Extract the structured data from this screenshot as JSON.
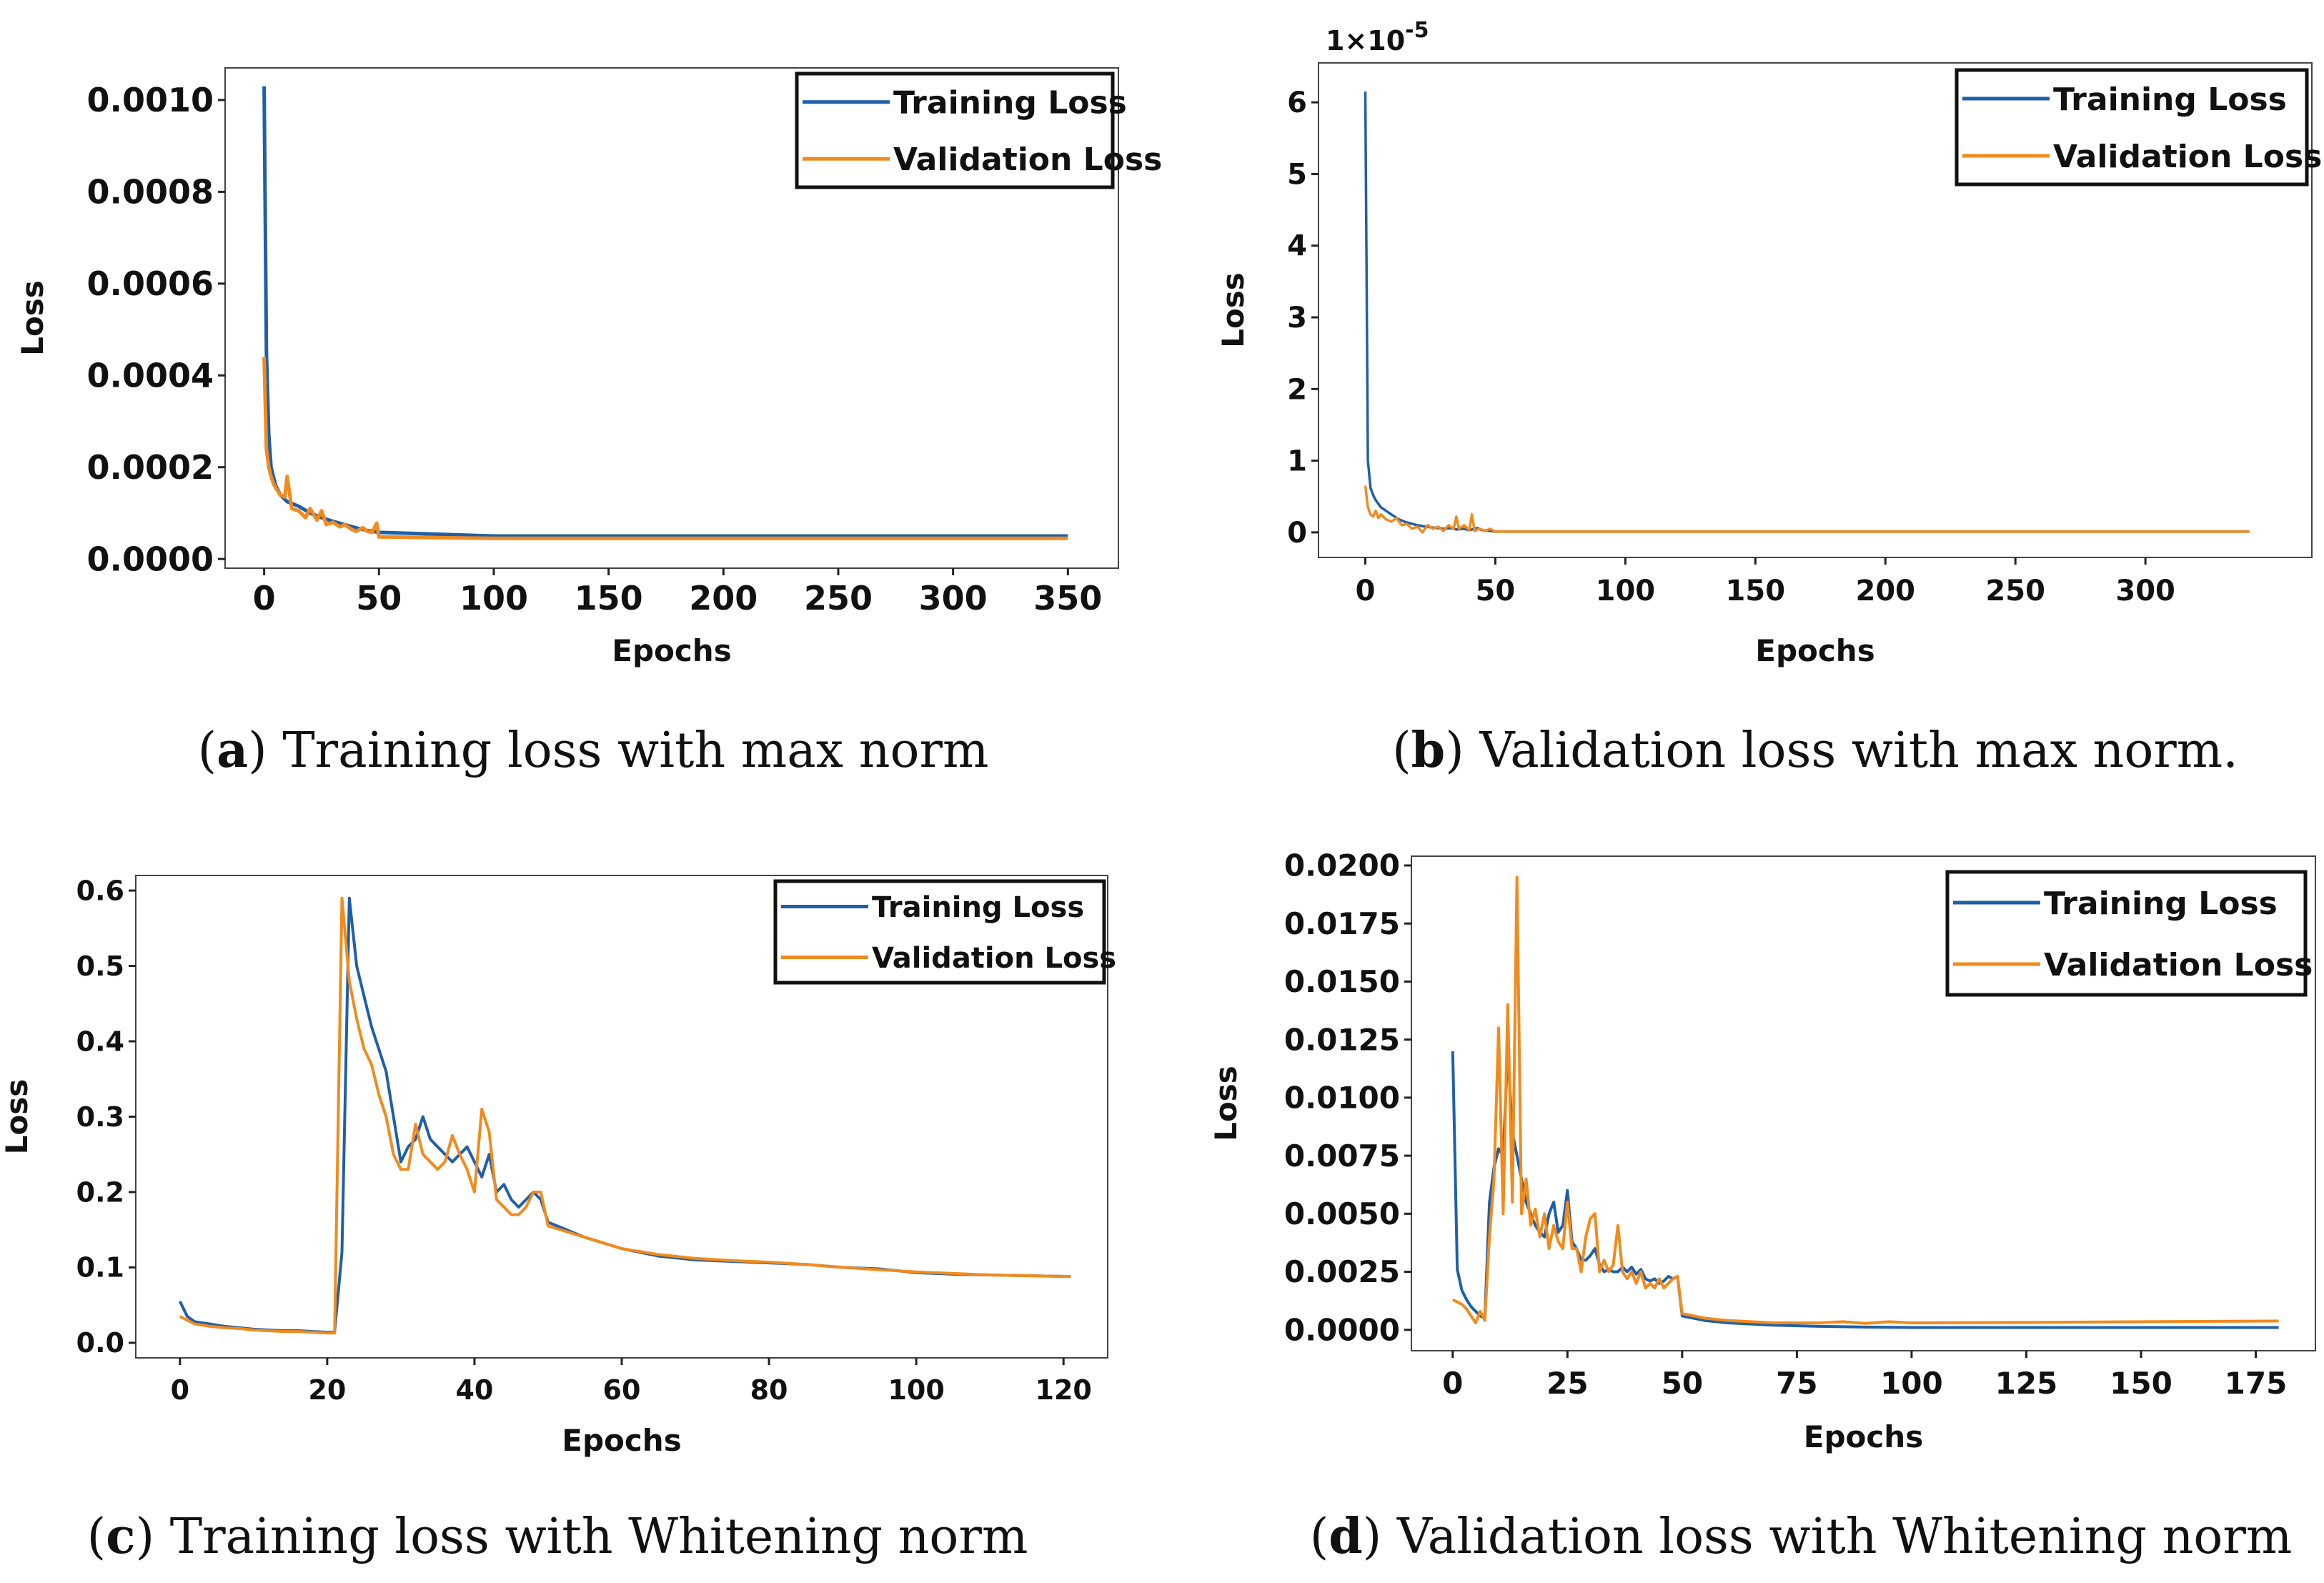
{
  "colors": {
    "training": "#1f5fa8",
    "validation": "#f28a1c",
    "axis": "#222222"
  },
  "chart_data": [
    {
      "id": "a",
      "type": "line",
      "xlabel": "Epochs",
      "ylabel": "Loss",
      "caption_letter": "a",
      "caption_text": "Training loss with max norm",
      "xticks": [
        0,
        50,
        100,
        150,
        200,
        250,
        300,
        350
      ],
      "yticks": [
        0.0,
        0.0002,
        0.0004,
        0.0006,
        0.0008,
        0.001
      ],
      "ytick_labels": [
        "0.0000",
        "0.0002",
        "0.0004",
        "0.0006",
        "0.0008",
        "0.0010"
      ],
      "xlim": [
        -17,
        372
      ],
      "ylim": [
        -2e-05,
        0.00107
      ],
      "legend": "top-right",
      "series": [
        {
          "name": "Training Loss",
          "x": [
            0,
            1,
            2,
            3,
            4,
            5,
            7,
            10,
            15,
            20,
            25,
            30,
            35,
            40,
            45,
            50,
            100,
            150,
            200,
            250,
            300,
            350
          ],
          "values": [
            0.00103,
            0.00045,
            0.00027,
            0.0002,
            0.00018,
            0.00016,
            0.00014,
            0.000125,
            0.000115,
            0.0001,
            9e-05,
            8.2e-05,
            7.5e-05,
            6.8e-05,
            6.2e-05,
            5.8e-05,
            5e-05,
            5e-05,
            5e-05,
            5e-05,
            5e-05,
            5e-05
          ]
        },
        {
          "name": "Validation Loss",
          "x": [
            0,
            1,
            2,
            3,
            4,
            5,
            7,
            9,
            10,
            12,
            15,
            18,
            20,
            23,
            25,
            27,
            30,
            33,
            35,
            38,
            40,
            43,
            45,
            47,
            49,
            50,
            100,
            150,
            200,
            250,
            300,
            350
          ],
          "values": [
            0.00044,
            0.00024,
            0.0002,
            0.00018,
            0.000165,
            0.000155,
            0.00014,
            0.000135,
            0.00018,
            0.00011,
            0.000105,
            9e-05,
            0.00011,
            8.5e-05,
            0.000105,
            7.5e-05,
            8e-05,
            7e-05,
            7.5e-05,
            6.5e-05,
            6e-05,
            6.8e-05,
            6e-05,
            5.8e-05,
            7.8e-05,
            4.8e-05,
            4.5e-05,
            4.5e-05,
            4.5e-05,
            4.5e-05,
            4.5e-05,
            4.5e-05
          ]
        }
      ]
    },
    {
      "id": "b",
      "type": "line",
      "xlabel": "Epochs",
      "ylabel": "Loss",
      "yscale_label": "1×10",
      "yscale_exp": "-5",
      "caption_letter": "b",
      "caption_text": "Validation loss with max norm.",
      "xticks": [
        0,
        50,
        100,
        150,
        200,
        250,
        300
      ],
      "yticks": [
        0,
        1,
        2,
        3,
        4,
        5,
        6
      ],
      "ytick_labels": [
        "0",
        "1",
        "2",
        "3",
        "4",
        "5",
        "6"
      ],
      "xlim": [
        -18,
        364
      ],
      "ylim": [
        -0.35,
        6.55
      ],
      "legend": "top-right",
      "series": [
        {
          "name": "Training Loss",
          "x": [
            0,
            1,
            2,
            3,
            4,
            5,
            6,
            8,
            10,
            13,
            15,
            18,
            20,
            23,
            25,
            28,
            30,
            33,
            35,
            38,
            40,
            43,
            45,
            48,
            50,
            100,
            150,
            200,
            250,
            300,
            340
          ],
          "values": [
            6.15,
            1.0,
            0.62,
            0.52,
            0.45,
            0.4,
            0.35,
            0.3,
            0.25,
            0.18,
            0.15,
            0.12,
            0.1,
            0.08,
            0.07,
            0.06,
            0.05,
            0.06,
            0.04,
            0.05,
            0.03,
            0.06,
            0.03,
            0.02,
            0.01,
            0.01,
            0.01,
            0.01,
            0.01,
            0.01,
            0.01
          ]
        },
        {
          "name": "Validation Loss",
          "x": [
            0,
            1,
            2,
            3,
            4,
            5,
            6,
            8,
            10,
            12,
            14,
            16,
            18,
            20,
            22,
            24,
            26,
            28,
            30,
            32,
            34,
            35,
            36,
            38,
            40,
            41,
            42,
            44,
            46,
            48,
            50,
            100,
            150,
            200,
            250,
            300,
            340
          ],
          "values": [
            0.65,
            0.35,
            0.25,
            0.22,
            0.3,
            0.2,
            0.25,
            0.18,
            0.15,
            0.2,
            0.1,
            0.12,
            0.05,
            0.08,
            0.0,
            0.1,
            0.05,
            0.08,
            0.02,
            0.1,
            0.05,
            0.22,
            0.05,
            0.1,
            0.03,
            0.25,
            0.02,
            0.05,
            0.02,
            0.05,
            0.01,
            0.01,
            0.01,
            0.01,
            0.01,
            0.01,
            0.01
          ]
        }
      ]
    },
    {
      "id": "c",
      "type": "line",
      "xlabel": "Epochs",
      "ylabel": "Loss",
      "caption_letter": "c",
      "caption_text": "Training loss with Whitening norm",
      "xticks": [
        0,
        20,
        40,
        60,
        80,
        100,
        120
      ],
      "yticks": [
        0.0,
        0.1,
        0.2,
        0.3,
        0.4,
        0.5,
        0.6
      ],
      "ytick_labels": [
        "0.0",
        "0.1",
        "0.2",
        "0.3",
        "0.4",
        "0.5",
        "0.6"
      ],
      "xlim": [
        -6,
        126
      ],
      "ylim": [
        -0.02,
        0.62
      ],
      "legend": "top-right",
      "series": [
        {
          "name": "Training Loss",
          "x": [
            0,
            1,
            2,
            4,
            6,
            8,
            10,
            12,
            14,
            16,
            18,
            20,
            21,
            22,
            23,
            24,
            25,
            26,
            27,
            28,
            29,
            30,
            31,
            32,
            33,
            34,
            35,
            36,
            37,
            38,
            39,
            40,
            41,
            42,
            43,
            44,
            45,
            46,
            47,
            48,
            49,
            50,
            55,
            60,
            65,
            70,
            75,
            80,
            85,
            90,
            95,
            100,
            105,
            110,
            115,
            121
          ],
          "values": [
            0.055,
            0.035,
            0.028,
            0.025,
            0.022,
            0.02,
            0.018,
            0.017,
            0.016,
            0.016,
            0.015,
            0.014,
            0.014,
            0.12,
            0.59,
            0.5,
            0.46,
            0.42,
            0.39,
            0.36,
            0.3,
            0.24,
            0.26,
            0.27,
            0.3,
            0.27,
            0.26,
            0.25,
            0.24,
            0.25,
            0.26,
            0.24,
            0.22,
            0.25,
            0.2,
            0.21,
            0.19,
            0.18,
            0.19,
            0.2,
            0.19,
            0.16,
            0.14,
            0.125,
            0.115,
            0.11,
            0.108,
            0.106,
            0.104,
            0.1,
            0.098,
            0.093,
            0.091,
            0.09,
            0.089,
            0.088
          ]
        },
        {
          "name": "Validation Loss",
          "x": [
            0,
            1,
            2,
            4,
            6,
            8,
            10,
            12,
            14,
            16,
            18,
            20,
            21,
            22,
            23,
            24,
            25,
            26,
            27,
            28,
            29,
            30,
            31,
            32,
            33,
            34,
            35,
            36,
            37,
            38,
            39,
            40,
            41,
            42,
            43,
            44,
            45,
            46,
            47,
            48,
            49,
            50,
            55,
            60,
            65,
            70,
            75,
            80,
            85,
            90,
            95,
            100,
            105,
            110,
            115,
            121
          ],
          "values": [
            0.035,
            0.03,
            0.025,
            0.022,
            0.02,
            0.019,
            0.017,
            0.016,
            0.015,
            0.015,
            0.014,
            0.013,
            0.013,
            0.59,
            0.48,
            0.43,
            0.39,
            0.37,
            0.33,
            0.3,
            0.25,
            0.23,
            0.23,
            0.29,
            0.25,
            0.24,
            0.23,
            0.24,
            0.275,
            0.25,
            0.23,
            0.2,
            0.31,
            0.28,
            0.19,
            0.18,
            0.17,
            0.17,
            0.18,
            0.2,
            0.2,
            0.155,
            0.14,
            0.125,
            0.117,
            0.112,
            0.109,
            0.107,
            0.104,
            0.1,
            0.097,
            0.094,
            0.092,
            0.09,
            0.089,
            0.088
          ]
        }
      ]
    },
    {
      "id": "d",
      "type": "line",
      "xlabel": "Epochs",
      "ylabel": "Loss",
      "caption_letter": "d",
      "caption_text": "Validation loss with Whitening norm",
      "xticks": [
        0,
        25,
        50,
        75,
        100,
        125,
        150,
        175
      ],
      "yticks": [
        0.0,
        0.0025,
        0.005,
        0.0075,
        0.01,
        0.0125,
        0.015,
        0.0175,
        0.02
      ],
      "ytick_labels": [
        "0.0000",
        "0.0025",
        "0.0050",
        "0.0075",
        "0.0100",
        "0.0125",
        "0.0150",
        "0.0175",
        "0.0200"
      ],
      "xlim": [
        -9,
        188
      ],
      "ylim": [
        -0.0009,
        0.0204
      ],
      "legend": "top-right",
      "series": [
        {
          "name": "Training Loss",
          "x": [
            0,
            1,
            2,
            3,
            4,
            5,
            6,
            7,
            8,
            9,
            10,
            11,
            12,
            13,
            14,
            15,
            16,
            17,
            18,
            19,
            20,
            21,
            22,
            23,
            24,
            25,
            26,
            27,
            28,
            29,
            30,
            31,
            32,
            33,
            34,
            35,
            36,
            37,
            38,
            39,
            40,
            41,
            42,
            43,
            44,
            45,
            46,
            47,
            48,
            49,
            50,
            55,
            60,
            70,
            80,
            90,
            100,
            125,
            150,
            180
          ],
          "values": [
            0.012,
            0.0026,
            0.0017,
            0.0013,
            0.001,
            0.0008,
            0.0006,
            0.0005,
            0.0055,
            0.007,
            0.0078,
            0.0075,
            0.012,
            0.0085,
            0.0075,
            0.0065,
            0.0055,
            0.005,
            0.0045,
            0.0042,
            0.004,
            0.005,
            0.0055,
            0.0042,
            0.0045,
            0.006,
            0.0038,
            0.0035,
            0.003,
            0.003,
            0.0032,
            0.0035,
            0.0028,
            0.0025,
            0.0026,
            0.0025,
            0.0025,
            0.0027,
            0.0025,
            0.0027,
            0.0024,
            0.0026,
            0.0022,
            0.0021,
            0.0022,
            0.002,
            0.0021,
            0.0023,
            0.0022,
            0.0023,
            0.0006,
            0.0004,
            0.0003,
            0.0002,
            0.00015,
            0.00012,
            0.0001,
            0.0001,
            0.0001,
            0.0001
          ]
        },
        {
          "name": "Validation Loss",
          "x": [
            0,
            1,
            2,
            3,
            4,
            5,
            6,
            7,
            8,
            9,
            10,
            11,
            12,
            13,
            14,
            15,
            16,
            17,
            18,
            19,
            20,
            21,
            22,
            23,
            24,
            25,
            26,
            27,
            28,
            29,
            30,
            31,
            32,
            33,
            34,
            35,
            36,
            37,
            38,
            39,
            40,
            41,
            42,
            43,
            44,
            45,
            46,
            47,
            48,
            49,
            50,
            55,
            60,
            70,
            80,
            85,
            90,
            95,
            100,
            125,
            150,
            180
          ],
          "values": [
            0.0013,
            0.0012,
            0.0011,
            0.0009,
            0.0006,
            0.0003,
            0.0008,
            0.0004,
            0.004,
            0.0065,
            0.013,
            0.005,
            0.014,
            0.0055,
            0.0195,
            0.005,
            0.0065,
            0.0045,
            0.0052,
            0.004,
            0.005,
            0.0035,
            0.0045,
            0.0038,
            0.0035,
            0.0055,
            0.0035,
            0.0035,
            0.0025,
            0.004,
            0.0048,
            0.005,
            0.0025,
            0.003,
            0.0025,
            0.0028,
            0.0045,
            0.0025,
            0.0022,
            0.0025,
            0.002,
            0.0025,
            0.0018,
            0.002,
            0.0018,
            0.0022,
            0.0018,
            0.002,
            0.0022,
            0.0023,
            0.0007,
            0.0005,
            0.0004,
            0.0003,
            0.0003,
            0.00035,
            0.00028,
            0.00035,
            0.0003,
            0.00032,
            0.00035,
            0.00038
          ]
        }
      ]
    }
  ]
}
